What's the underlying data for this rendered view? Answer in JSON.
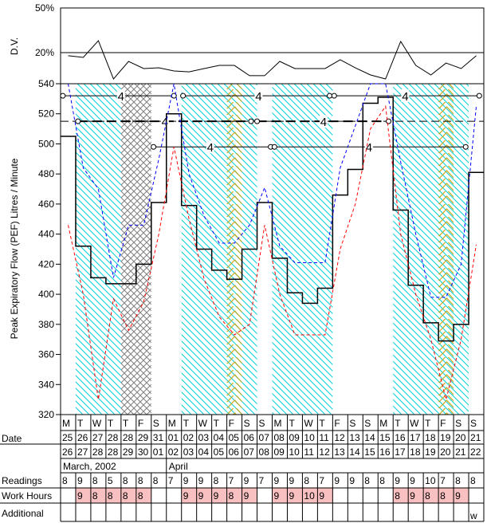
{
  "chart_data": [
    {
      "type": "line",
      "ylabel": "D.V.",
      "ylim": [
        0,
        50
      ],
      "yticks": [
        "50%",
        "20%"
      ],
      "reference_line": 20,
      "values": [
        17.9,
        16.8,
        28,
        2.3,
        14.1,
        9.3,
        9.8,
        7.7,
        7.1,
        9.3,
        11.4,
        11.4,
        4.5,
        4.5,
        14.1,
        9.3,
        9.3,
        9.3,
        15.2,
        9.8,
        5,
        2.3,
        27.5,
        11.4,
        5,
        13,
        9.3,
        17.9
      ]
    },
    {
      "type": "line",
      "ylabel": "Peak Expiratory Flow (PEF) Litres / Minute",
      "ylim": [
        320,
        540
      ],
      "yticks": [
        "540",
        "520",
        "500",
        "480",
        "460",
        "440",
        "420",
        "400",
        "380",
        "360",
        "340",
        "320"
      ],
      "grid": false,
      "series": [
        {
          "style": "step",
          "color": "#000000",
          "values": [
            505,
            432,
            411,
            407,
            407,
            420,
            461,
            520,
            459,
            430,
            416,
            410,
            430,
            461,
            424,
            401,
            394,
            404,
            466,
            483,
            527,
            531,
            456,
            406,
            381,
            369,
            380,
            481
          ]
        },
        {
          "style": "dashed",
          "color": "#0000ff",
          "values": [
            540,
            484,
            470,
            411,
            446,
            446,
            490,
            540,
            480,
            452,
            434,
            434,
            446,
            471,
            432,
            421,
            421,
            421,
            484,
            512,
            540,
            540,
            488,
            440,
            398,
            398,
            420,
            525
          ]
        },
        {
          "style": "dashed",
          "color": "#ff0000",
          "values": [
            446,
            400,
            330,
            397,
            376,
            395,
            440,
            498,
            450,
            410,
            385,
            373,
            380,
            446,
            400,
            373,
            373,
            373,
            430,
            460,
            510,
            525,
            440,
            400,
            370,
            330,
            370,
            433
          ]
        }
      ],
      "reference_lines": [
        {
          "value": 532,
          "label": "4",
          "segments": [
            [
              0.15,
              7.5
            ],
            [
              8.1,
              17.8
            ],
            [
              18.1,
              27.7
            ]
          ],
          "label_at": [
            4,
            13.1,
            22.8
          ]
        },
        {
          "value": 515,
          "label": "4",
          "dashed": true,
          "segments": [
            [
              1.15,
              12.6
            ],
            [
              13.0,
              21.7
            ]
          ],
          "label_at": [
            6.9,
            17.4
          ]
        },
        {
          "value": 498,
          "label": "4",
          "segments": [
            [
              6.15,
              13.9
            ],
            [
              14.15,
              26.8
            ]
          ],
          "label_at": [
            9.9,
            20.4
          ]
        }
      ],
      "shading": {
        "work_hatch_color": "#00cccc",
        "alt_hatch_color": "#c8a000",
        "crosshatch_color": "#808080",
        "work_days": [
          1,
          2,
          3,
          8,
          9,
          10,
          11,
          12,
          14,
          15,
          16,
          17,
          22,
          23,
          24,
          25,
          26
        ],
        "crosshatch_days": [
          4,
          5
        ],
        "chevron_days": [
          11,
          25
        ]
      }
    }
  ],
  "table": {
    "labels": {
      "date": "Date",
      "readings": "Readings",
      "work_hours": "Work Hours",
      "additional": "Additional"
    },
    "weekdays": [
      "M",
      "T",
      "W",
      "T",
      "T",
      "F",
      "S",
      "M",
      "T",
      "W",
      "T",
      "F",
      "S",
      "S",
      "M",
      "T",
      "W",
      "T",
      "F",
      "S",
      "S",
      "M",
      "T",
      "W",
      "T",
      "F",
      "S",
      "S"
    ],
    "dates_start": [
      "25",
      "26",
      "27",
      "28",
      "28",
      "29",
      "31",
      "01",
      "02",
      "03",
      "04",
      "05",
      "06",
      "07",
      "08",
      "09",
      "10",
      "11",
      "12",
      "13",
      "14",
      "15",
      "16",
      "17",
      "18",
      "19",
      "20",
      "21"
    ],
    "dates_end": [
      "26",
      "27",
      "28",
      "28",
      "29",
      "30",
      "01",
      "02",
      "03",
      "04",
      "05",
      "06",
      "07",
      "08",
      "09",
      "10",
      "11",
      "12",
      "13",
      "14",
      "15",
      "16",
      "17",
      "18",
      "19",
      "20",
      "21",
      "22"
    ],
    "months": [
      {
        "label": "March, 2002",
        "start": 0
      },
      {
        "label": "April",
        "start": 7
      }
    ],
    "readings": [
      "8",
      "9",
      "8",
      "5",
      "8",
      "8",
      "8",
      "7",
      "9",
      "9",
      "8",
      "7",
      "9",
      "7",
      "9",
      "9",
      "8",
      "7",
      "9",
      "9",
      "8",
      "8",
      "9",
      "9",
      "10",
      "7",
      "8",
      "8"
    ],
    "work_hours": [
      "",
      "9",
      "8",
      "8",
      "8",
      "8",
      "",
      "",
      "9",
      "9",
      "9",
      "8",
      "9",
      "",
      "9",
      "9",
      "10",
      "9",
      "",
      "",
      "",
      "",
      "8",
      "9",
      "8",
      "8",
      "9",
      ""
    ],
    "work_hours_color": "#f8c0c0",
    "additional": [
      "",
      "",
      "",
      "",
      "",
      "",
      "",
      "",
      "",
      "",
      "",
      "",
      "",
      "",
      "",
      "",
      "",
      "",
      "",
      "",
      "",
      "",
      "",
      "",
      "",
      "",
      "",
      "w"
    ]
  }
}
